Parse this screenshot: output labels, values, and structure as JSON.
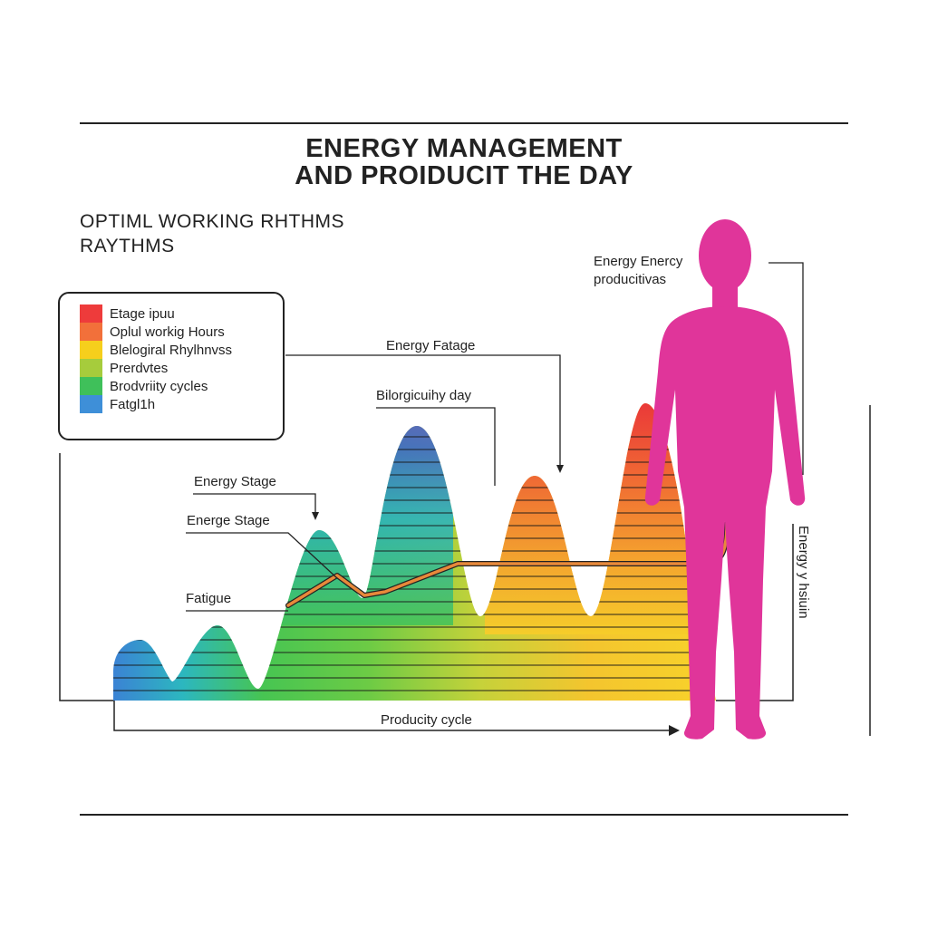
{
  "title": {
    "line1": "ENERGY MANAGEMENT",
    "line2": "AND PROIDUCIT THE DAY"
  },
  "subtitle": {
    "line1": "OPTIML WORKING RHTHMS",
    "line2": "RAYTHMS"
  },
  "legend": {
    "items": [
      {
        "label": "Etage ipuu",
        "color": "#ee3b3b"
      },
      {
        "label": "Oplul workig Hours",
        "color": "#f2703a"
      },
      {
        "label": "Blelogiral Rhylhnvss",
        "color": "#f6cf1c"
      },
      {
        "label": "Prerdvtes",
        "color": "#a6cc3c"
      },
      {
        "label": "Brodvriity cycles",
        "color": "#3fc05a"
      },
      {
        "label": "Fatgl1h",
        "color": "#3e8fd8"
      }
    ]
  },
  "annotations": {
    "energy_stage_1": "Energy Stage",
    "energe_stage": "Energe Stage",
    "fatigue": "Fatigue",
    "energy_fatage": "Energy Fatage",
    "bilorgic_day": "Bilorgicuihy day",
    "energy_productives_1": "Energy Enercy",
    "energy_productives_2": "producitivas",
    "vertical_label": "Energy y hsiuin",
    "productivity_cycle": "Producity cycle"
  },
  "colors": {
    "figure": "#e0359a",
    "energy_line": "#e8893a",
    "band_top": "#e8493d",
    "band_bottom": "#f4cb2c"
  }
}
